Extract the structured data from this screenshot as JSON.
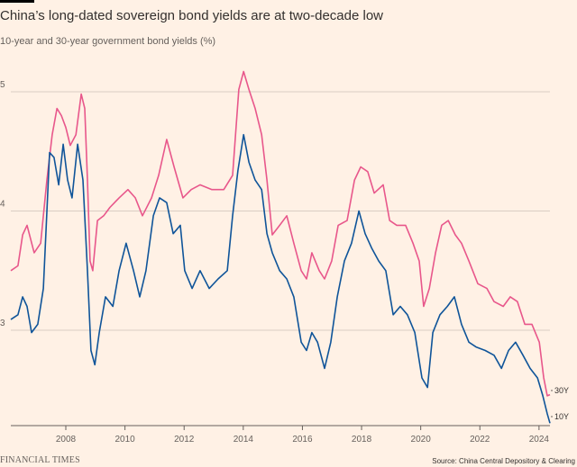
{
  "header": {
    "title": "China’s long-dated sovereign bond yields are at two-decade low",
    "subtitle": "10-year and 30-year government bond yields (%)"
  },
  "footer": {
    "brand": "FINANCIAL TIMES",
    "source": "Source: China Central Depository & Clearing"
  },
  "chart_data": {
    "type": "line",
    "title": "China’s long-dated sovereign bond yields are at two-decade low",
    "subtitle": "10-year and 30-year government bond yields (%)",
    "xlabel": "",
    "ylabel": "",
    "xlim": [
      2006.14,
      2024.37
    ],
    "ylim": [
      2.2,
      5.25
    ],
    "x_ticks": [
      "2008",
      "2010",
      "2012",
      "2014",
      "2016",
      "2018",
      "2020",
      "2022",
      "2024"
    ],
    "y_ticks": [
      "3",
      "4",
      "5"
    ],
    "grid": "horizontal",
    "legend": "direct labels at right end",
    "series": [
      {
        "name": "30Y",
        "color": "#e8578b",
        "points": [
          [
            2006.14,
            3.5
          ],
          [
            2006.38,
            3.54
          ],
          [
            2006.54,
            3.8
          ],
          [
            2006.69,
            3.88
          ],
          [
            2006.93,
            3.65
          ],
          [
            2007.15,
            3.73
          ],
          [
            2007.36,
            4.26
          ],
          [
            2007.54,
            4.64
          ],
          [
            2007.7,
            4.86
          ],
          [
            2007.85,
            4.8
          ],
          [
            2008.0,
            4.7
          ],
          [
            2008.15,
            4.55
          ],
          [
            2008.34,
            4.64
          ],
          [
            2008.52,
            4.98
          ],
          [
            2008.64,
            4.86
          ],
          [
            2008.73,
            4.26
          ],
          [
            2008.82,
            3.58
          ],
          [
            2008.91,
            3.5
          ],
          [
            2009.07,
            3.92
          ],
          [
            2009.28,
            3.96
          ],
          [
            2009.49,
            4.03
          ],
          [
            2009.8,
            4.11
          ],
          [
            2010.1,
            4.18
          ],
          [
            2010.35,
            4.11
          ],
          [
            2010.59,
            3.96
          ],
          [
            2010.9,
            4.11
          ],
          [
            2011.14,
            4.3
          ],
          [
            2011.41,
            4.6
          ],
          [
            2011.66,
            4.37
          ],
          [
            2011.96,
            4.11
          ],
          [
            2012.24,
            4.18
          ],
          [
            2012.54,
            4.22
          ],
          [
            2012.94,
            4.18
          ],
          [
            2013.34,
            4.18
          ],
          [
            2013.64,
            4.3
          ],
          [
            2013.85,
            5.02
          ],
          [
            2014.01,
            5.17
          ],
          [
            2014.19,
            5.02
          ],
          [
            2014.4,
            4.86
          ],
          [
            2014.62,
            4.64
          ],
          [
            2014.8,
            4.26
          ],
          [
            2014.98,
            3.8
          ],
          [
            2015.23,
            3.88
          ],
          [
            2015.47,
            3.96
          ],
          [
            2015.71,
            3.73
          ],
          [
            2015.96,
            3.5
          ],
          [
            2016.14,
            3.43
          ],
          [
            2016.32,
            3.65
          ],
          [
            2016.57,
            3.5
          ],
          [
            2016.75,
            3.43
          ],
          [
            2016.99,
            3.58
          ],
          [
            2017.21,
            3.88
          ],
          [
            2017.51,
            3.92
          ],
          [
            2017.76,
            4.26
          ],
          [
            2017.97,
            4.37
          ],
          [
            2018.21,
            4.33
          ],
          [
            2018.43,
            4.15
          ],
          [
            2018.73,
            4.22
          ],
          [
            2018.95,
            3.92
          ],
          [
            2019.19,
            3.88
          ],
          [
            2019.49,
            3.88
          ],
          [
            2019.74,
            3.73
          ],
          [
            2019.95,
            3.58
          ],
          [
            2020.1,
            3.2
          ],
          [
            2020.29,
            3.35
          ],
          [
            2020.5,
            3.65
          ],
          [
            2020.71,
            3.88
          ],
          [
            2020.93,
            3.92
          ],
          [
            2021.17,
            3.8
          ],
          [
            2021.38,
            3.73
          ],
          [
            2021.63,
            3.58
          ],
          [
            2021.93,
            3.39
          ],
          [
            2022.24,
            3.35
          ],
          [
            2022.48,
            3.24
          ],
          [
            2022.79,
            3.2
          ],
          [
            2023.03,
            3.28
          ],
          [
            2023.27,
            3.24
          ],
          [
            2023.52,
            3.05
          ],
          [
            2023.76,
            3.05
          ],
          [
            2024.01,
            2.9
          ],
          [
            2024.16,
            2.6
          ],
          [
            2024.28,
            2.45
          ],
          [
            2024.37,
            2.46
          ]
        ]
      },
      {
        "name": "10Y",
        "color": "#0f5499",
        "points": [
          [
            2006.14,
            3.09
          ],
          [
            2006.38,
            3.13
          ],
          [
            2006.54,
            3.28
          ],
          [
            2006.69,
            3.2
          ],
          [
            2006.84,
            2.98
          ],
          [
            2007.05,
            3.05
          ],
          [
            2007.24,
            3.35
          ],
          [
            2007.45,
            4.49
          ],
          [
            2007.6,
            4.45
          ],
          [
            2007.76,
            4.22
          ],
          [
            2007.91,
            4.56
          ],
          [
            2008.06,
            4.26
          ],
          [
            2008.21,
            4.11
          ],
          [
            2008.4,
            4.56
          ],
          [
            2008.58,
            4.26
          ],
          [
            2008.73,
            3.5
          ],
          [
            2008.85,
            2.83
          ],
          [
            2008.98,
            2.71
          ],
          [
            2009.13,
            2.98
          ],
          [
            2009.34,
            3.28
          ],
          [
            2009.59,
            3.2
          ],
          [
            2009.8,
            3.5
          ],
          [
            2010.04,
            3.73
          ],
          [
            2010.29,
            3.5
          ],
          [
            2010.5,
            3.28
          ],
          [
            2010.71,
            3.5
          ],
          [
            2010.96,
            3.96
          ],
          [
            2011.17,
            4.11
          ],
          [
            2011.41,
            4.07
          ],
          [
            2011.63,
            3.81
          ],
          [
            2011.87,
            3.88
          ],
          [
            2012.02,
            3.5
          ],
          [
            2012.27,
            3.35
          ],
          [
            2012.54,
            3.5
          ],
          [
            2012.85,
            3.35
          ],
          [
            2013.15,
            3.43
          ],
          [
            2013.46,
            3.5
          ],
          [
            2013.64,
            3.96
          ],
          [
            2013.82,
            4.34
          ],
          [
            2014.01,
            4.64
          ],
          [
            2014.19,
            4.41
          ],
          [
            2014.4,
            4.26
          ],
          [
            2014.62,
            4.18
          ],
          [
            2014.8,
            3.81
          ],
          [
            2014.98,
            3.65
          ],
          [
            2015.23,
            3.5
          ],
          [
            2015.47,
            3.43
          ],
          [
            2015.71,
            3.28
          ],
          [
            2015.96,
            2.9
          ],
          [
            2016.14,
            2.83
          ],
          [
            2016.32,
            2.98
          ],
          [
            2016.51,
            2.9
          ],
          [
            2016.75,
            2.68
          ],
          [
            2016.96,
            2.9
          ],
          [
            2017.18,
            3.28
          ],
          [
            2017.42,
            3.58
          ],
          [
            2017.66,
            3.73
          ],
          [
            2017.91,
            4.0
          ],
          [
            2018.12,
            3.81
          ],
          [
            2018.34,
            3.69
          ],
          [
            2018.58,
            3.58
          ],
          [
            2018.82,
            3.5
          ],
          [
            2019.07,
            3.13
          ],
          [
            2019.31,
            3.2
          ],
          [
            2019.55,
            3.13
          ],
          [
            2019.8,
            2.98
          ],
          [
            2020.04,
            2.6
          ],
          [
            2020.23,
            2.52
          ],
          [
            2020.41,
            2.98
          ],
          [
            2020.65,
            3.13
          ],
          [
            2020.9,
            3.2
          ],
          [
            2021.14,
            3.28
          ],
          [
            2021.38,
            3.05
          ],
          [
            2021.63,
            2.9
          ],
          [
            2021.87,
            2.86
          ],
          [
            2022.18,
            2.83
          ],
          [
            2022.48,
            2.79
          ],
          [
            2022.73,
            2.68
          ],
          [
            2022.97,
            2.83
          ],
          [
            2023.21,
            2.9
          ],
          [
            2023.46,
            2.79
          ],
          [
            2023.7,
            2.68
          ],
          [
            2023.95,
            2.6
          ],
          [
            2024.13,
            2.45
          ],
          [
            2024.28,
            2.3
          ],
          [
            2024.37,
            2.22
          ]
        ]
      }
    ]
  }
}
